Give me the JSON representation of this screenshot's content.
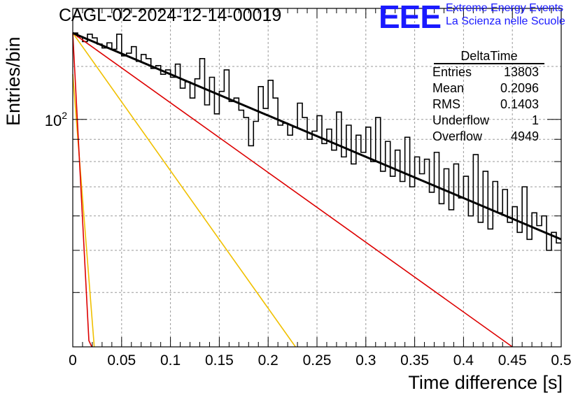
{
  "header": {
    "title": "CAGL-02-2024-12-14-00019",
    "logo": "EEE",
    "logo_line1": "Extreme Energy Events",
    "logo_line2": "La Scienza nelle Scuole"
  },
  "stats": {
    "name": "DeltaTime",
    "rows": [
      {
        "label": "Entries",
        "value": "13803"
      },
      {
        "label": "Mean",
        "value": "0.2096"
      },
      {
        "label": "RMS",
        "value": "0.1403"
      },
      {
        "label": "Underflow",
        "value": "1"
      },
      {
        "label": "Overflow",
        "value": "4949"
      }
    ]
  },
  "chart_data": {
    "type": "histogram",
    "xlabel": "Time difference [s]",
    "ylabel": "Entries/bin",
    "xlim": [
      0,
      0.5
    ],
    "ylim": [
      30,
      180
    ],
    "yscale": "log",
    "grid": true,
    "xticks": [
      "0",
      "0.05",
      "0.1",
      "0.15",
      "0.2",
      "0.25",
      "0.3",
      "0.35",
      "0.4",
      "0.45",
      "0.5"
    ],
    "yticks": [
      {
        "value": 100,
        "label": "10",
        "exp": "2"
      }
    ],
    "bin_width": 0.005,
    "histogram_values": [
      158,
      155,
      151,
      157,
      154,
      149,
      146,
      150,
      145,
      157,
      140,
      142,
      147,
      136,
      141,
      138,
      131,
      133,
      127,
      130,
      125,
      134,
      118,
      122,
      112,
      124,
      138,
      108,
      125,
      103,
      116,
      130,
      110,
      112,
      105,
      101,
      87,
      99,
      119,
      106,
      123,
      112,
      97,
      98,
      92,
      96,
      109,
      101,
      90,
      94,
      102,
      88,
      95,
      85,
      104,
      82,
      97,
      79,
      92,
      84,
      96,
      80,
      101,
      76,
      89,
      74,
      85,
      72,
      91,
      70,
      82,
      75,
      81,
      68,
      84,
      64,
      77,
      62,
      79,
      66,
      74,
      60,
      83,
      58,
      76,
      56,
      72,
      61,
      69,
      58,
      63,
      55,
      70,
      53,
      61,
      57,
      60,
      50,
      55,
      52
    ],
    "series": [
      {
        "name": "fit",
        "color": "#000000",
        "x": [
          0,
          0.5
        ],
        "y": [
          158,
          53
        ]
      },
      {
        "color": "#dd0000",
        "x": [
          0,
          0.45
        ],
        "y": [
          158,
          30
        ]
      },
      {
        "color": "#f0c000",
        "x": [
          0,
          0.228
        ],
        "y": [
          158,
          30
        ]
      },
      {
        "color": "#f0c000",
        "x": [
          0,
          0.022
        ],
        "y": [
          127,
          30
        ]
      },
      {
        "color": "#dd0000",
        "x": [
          0,
          0.0165,
          0.0195
        ],
        "y": [
          158,
          31,
          30
        ]
      }
    ]
  }
}
